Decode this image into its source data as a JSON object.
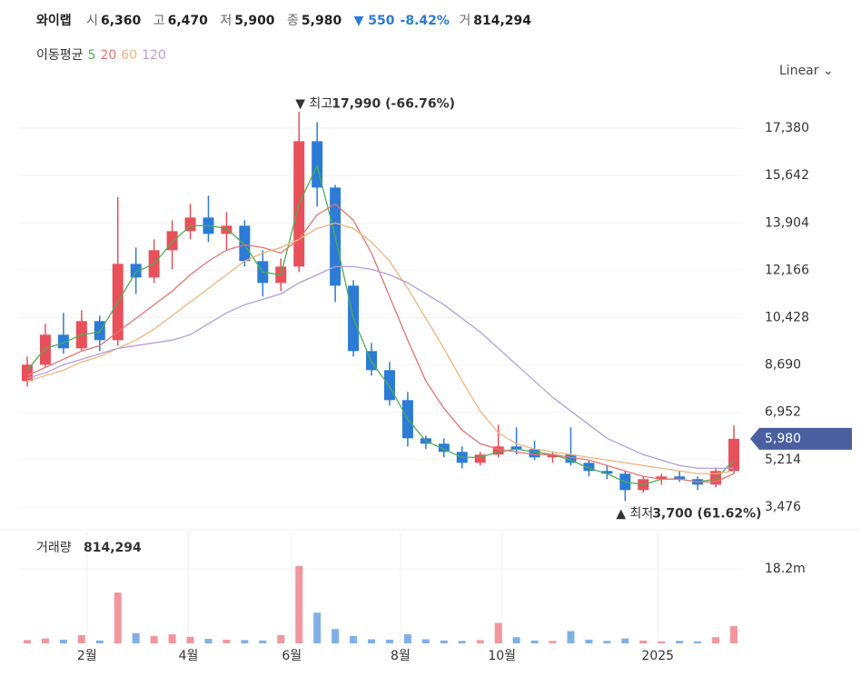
{
  "header": {
    "name": "와이랩",
    "items": [
      {
        "label": "시",
        "value": "6,360"
      },
      {
        "label": "고",
        "value": "6,470"
      },
      {
        "label": "저",
        "value": "5,900"
      },
      {
        "label": "종",
        "value": "5,980"
      }
    ],
    "change": "▼ 550",
    "change_pct": "-8.42%",
    "vol_label": "거",
    "volume": "814,294"
  },
  "legend": {
    "title": "이동평균"
  },
  "scale_mode": "Linear",
  "chart_data": {
    "type": "candlestick",
    "categories": [
      null,
      null,
      null,
      null,
      null,
      null,
      null,
      null,
      null,
      null,
      null,
      null,
      null,
      null,
      null,
      null,
      null,
      null,
      null,
      null,
      null,
      null,
      null,
      null,
      null,
      null,
      null,
      null,
      null,
      null,
      null,
      null,
      null,
      null,
      null,
      null,
      null,
      null,
      null,
      null
    ],
    "xlim": [
      -0.5,
      39.5
    ],
    "xticks": [
      {
        "value": 3.3,
        "label": "2월"
      },
      {
        "value": 8.9,
        "label": "4월"
      },
      {
        "value": 14.6,
        "label": "6월"
      },
      {
        "value": 20.6,
        "label": "8월"
      },
      {
        "value": 26.2,
        "label": "10월"
      },
      {
        "value": 34.8,
        "label": "2025"
      }
    ],
    "ylim": [
      2742,
      18914
    ],
    "yticks": [
      {
        "value": 17380,
        "label": "17,380"
      },
      {
        "value": 15642,
        "label": "15,642"
      },
      {
        "value": 13904,
        "label": "13,904"
      },
      {
        "value": 12166,
        "label": "12,166"
      },
      {
        "value": 10428,
        "label": "10,428"
      },
      {
        "value": 8690,
        "label": "8,690"
      },
      {
        "value": 6952,
        "label": "6,952"
      },
      {
        "value": 5214,
        "label": "5,214"
      },
      {
        "value": 3476,
        "label": "3,476"
      }
    ],
    "grid": true,
    "up_color": "#e8505b",
    "down_color": "#2c7bd6",
    "open": [
      8100,
      8700,
      9800,
      9300,
      10300,
      9600,
      12400,
      11900,
      12900,
      13600,
      14100,
      13500,
      13800,
      12500,
      11700,
      12300,
      16900,
      15200,
      11600,
      9200,
      8500,
      7400,
      6000,
      5800,
      5500,
      5100,
      5400,
      5700,
      5600,
      5300,
      5400,
      5100,
      4800,
      4700,
      4100,
      4500,
      4600,
      4500,
      4300,
      4800
    ],
    "high": [
      9000,
      10200,
      10600,
      10700,
      10500,
      14850,
      13000,
      13300,
      14000,
      14600,
      14900,
      14300,
      14000,
      12900,
      12600,
      17990,
      17600,
      15300,
      11800,
      9500,
      8800,
      7700,
      6100,
      6000,
      5700,
      5500,
      6500,
      6400,
      5900,
      5500,
      6400,
      5200,
      5000,
      4800,
      4600,
      4700,
      4800,
      4600,
      4900,
      6470
    ],
    "low": [
      7900,
      8600,
      9100,
      9200,
      9200,
      9400,
      11300,
      11700,
      12200,
      13300,
      13200,
      12900,
      12300,
      11200,
      11400,
      12100,
      14500,
      11000,
      9000,
      8300,
      7200,
      5700,
      5600,
      5300,
      4900,
      5000,
      5300,
      5400,
      5200,
      5100,
      5000,
      4600,
      4500,
      3700,
      4000,
      4300,
      4400,
      4100,
      4200,
      4700
    ],
    "close": [
      8700,
      9800,
      9300,
      10300,
      9600,
      12400,
      11900,
      12900,
      13600,
      14100,
      13500,
      13800,
      12500,
      11700,
      12300,
      16900,
      15200,
      11600,
      9200,
      8500,
      7400,
      6000,
      5800,
      5500,
      5100,
      5400,
      5700,
      5600,
      5300,
      5400,
      5100,
      4800,
      4700,
      4100,
      4500,
      4600,
      4500,
      4300,
      4800,
      5980
    ],
    "last_label": "5,980",
    "annotations": [
      {
        "text": "▼ 최고",
        "value_label": "17,990 (-66.76%)",
        "index": 15,
        "value": 17990
      },
      {
        "text": "▲ 최저",
        "value_label": "3,700 (61.62%)",
        "index": 33,
        "value": 3700
      }
    ],
    "series": [
      {
        "name": "5",
        "color": "#4caf50",
        "values": [
          8500,
          9300,
          9500,
          9800,
          9900,
          11000,
          12100,
          12400,
          13200,
          13800,
          13800,
          13700,
          13100,
          12100,
          12000,
          14600,
          16000,
          13400,
          10400,
          8800,
          7900,
          6700,
          5900,
          5600,
          5300,
          5300,
          5500,
          5600,
          5500,
          5400,
          5200,
          4900,
          4700,
          4400,
          4300,
          4500,
          4500,
          4400,
          4500,
          5200
        ]
      },
      {
        "name": "20",
        "color": "#e57373",
        "values": [
          8300,
          8600,
          8900,
          9200,
          9400,
          9900,
          10400,
          10900,
          11400,
          12000,
          12500,
          12900,
          13100,
          13000,
          12800,
          13300,
          14200,
          14600,
          14000,
          12800,
          11200,
          9600,
          8100,
          7100,
          6300,
          5800,
          5600,
          5500,
          5400,
          5400,
          5300,
          5200,
          5000,
          4800,
          4600,
          4500,
          4500,
          4400,
          4400,
          4700
        ]
      },
      {
        "name": "60",
        "color": "#f0b27a",
        "values": [
          8100,
          8300,
          8500,
          8800,
          9000,
          9300,
          9600,
          10000,
          10500,
          11000,
          11500,
          12000,
          12500,
          12800,
          13000,
          13300,
          13700,
          13900,
          13700,
          13200,
          12500,
          11500,
          10400,
          9300,
          8100,
          7000,
          6200,
          5800,
          5600,
          5500,
          5400,
          5300,
          5200,
          5100,
          5000,
          4900,
          4800,
          4700,
          4700,
          4800
        ]
      },
      {
        "name": "120",
        "color": "#b39ddb",
        "values": [
          8200,
          8400,
          8700,
          8900,
          9100,
          9300,
          9400,
          9500,
          9600,
          9800,
          10200,
          10600,
          10900,
          11100,
          11300,
          11700,
          12000,
          12300,
          12300,
          12200,
          12000,
          11700,
          11300,
          10900,
          10400,
          9900,
          9300,
          8700,
          8100,
          7500,
          7000,
          6500,
          6000,
          5700,
          5400,
          5200,
          5000,
          4900,
          4900,
          4900
        ]
      }
    ],
    "volume_title": "거래량",
    "volume_value": "814,294",
    "volume": [
      800000,
      1200000,
      900000,
      2000000,
      700000,
      12400000,
      2500000,
      1800000,
      2200000,
      1600000,
      1100000,
      900000,
      800000,
      700000,
      2000000,
      18900000,
      7500000,
      3500000,
      1800000,
      1000000,
      900000,
      2200000,
      1000000,
      700000,
      600000,
      800000,
      5000000,
      1500000,
      700000,
      600000,
      3000000,
      900000,
      600000,
      1200000,
      700000,
      500000,
      600000,
      500000,
      1500000,
      4200000
    ],
    "volume_ylim": [
      0,
      27300000
    ],
    "volume_yticks": [
      {
        "value": 18200000,
        "label": "18.2m"
      }
    ]
  }
}
